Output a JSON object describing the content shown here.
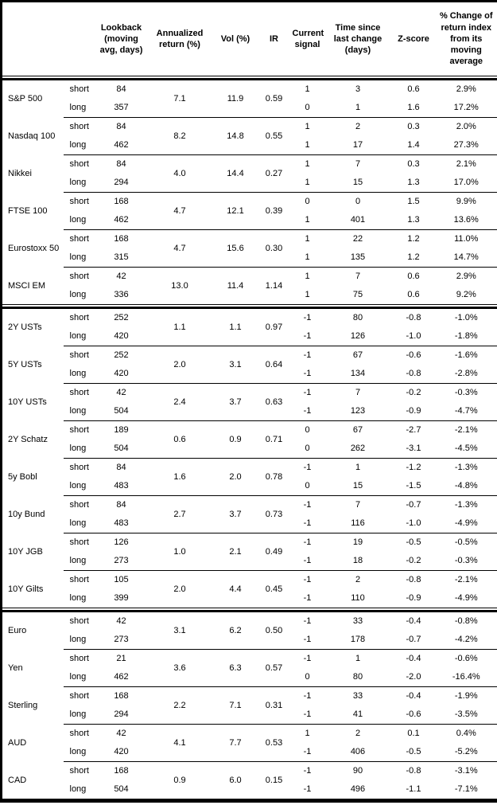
{
  "table": {
    "header": {
      "asset": "",
      "horizon": "",
      "lookback": "Lookback\n(moving\navg, days)",
      "ann_return": "Annualized\nreturn (%)",
      "vol": "Vol (%)",
      "ir": "IR",
      "signal": "Current\nsignal",
      "time_since": "Time since\nlast change\n(days)",
      "zscore": "Z-score",
      "pct_change": "% Change of\nreturn index\nfrom its\nmoving\naverage"
    },
    "groups": [
      {
        "asset": "S&P 500",
        "ann_return": "7.1",
        "vol": "11.9",
        "ir": "0.59",
        "section_end": false,
        "rows": [
          {
            "horizon": "short",
            "lookback": "84",
            "signal": "1",
            "time_since": "3",
            "zscore": "0.6",
            "pct_change": "2.9%"
          },
          {
            "horizon": "long",
            "lookback": "357",
            "signal": "0",
            "time_since": "1",
            "zscore": "1.6",
            "pct_change": "17.2%"
          }
        ]
      },
      {
        "asset": "Nasdaq 100",
        "ann_return": "8.2",
        "vol": "14.8",
        "ir": "0.55",
        "section_end": false,
        "rows": [
          {
            "horizon": "short",
            "lookback": "84",
            "signal": "1",
            "time_since": "2",
            "zscore": "0.3",
            "pct_change": "2.0%"
          },
          {
            "horizon": "long",
            "lookback": "462",
            "signal": "1",
            "time_since": "17",
            "zscore": "1.4",
            "pct_change": "27.3%"
          }
        ]
      },
      {
        "asset": "Nikkei",
        "ann_return": "4.0",
        "vol": "14.4",
        "ir": "0.27",
        "section_end": false,
        "rows": [
          {
            "horizon": "short",
            "lookback": "84",
            "signal": "1",
            "time_since": "7",
            "zscore": "0.3",
            "pct_change": "2.1%"
          },
          {
            "horizon": "long",
            "lookback": "294",
            "signal": "1",
            "time_since": "15",
            "zscore": "1.3",
            "pct_change": "17.0%"
          }
        ]
      },
      {
        "asset": "FTSE 100",
        "ann_return": "4.7",
        "vol": "12.1",
        "ir": "0.39",
        "section_end": false,
        "rows": [
          {
            "horizon": "short",
            "lookback": "168",
            "signal": "0",
            "time_since": "0",
            "zscore": "1.5",
            "pct_change": "9.9%"
          },
          {
            "horizon": "long",
            "lookback": "462",
            "signal": "1",
            "time_since": "401",
            "zscore": "1.3",
            "pct_change": "13.6%"
          }
        ]
      },
      {
        "asset": "Eurostoxx 50",
        "ann_return": "4.7",
        "vol": "15.6",
        "ir": "0.30",
        "section_end": false,
        "rows": [
          {
            "horizon": "short",
            "lookback": "168",
            "signal": "1",
            "time_since": "22",
            "zscore": "1.2",
            "pct_change": "11.0%"
          },
          {
            "horizon": "long",
            "lookback": "315",
            "signal": "1",
            "time_since": "135",
            "zscore": "1.2",
            "pct_change": "14.7%"
          }
        ]
      },
      {
        "asset": "MSCI EM",
        "ann_return": "13.0",
        "vol": "11.4",
        "ir": "1.14",
        "section_end": true,
        "rows": [
          {
            "horizon": "short",
            "lookback": "42",
            "signal": "1",
            "time_since": "7",
            "zscore": "0.6",
            "pct_change": "2.9%"
          },
          {
            "horizon": "long",
            "lookback": "336",
            "signal": "1",
            "time_since": "75",
            "zscore": "0.6",
            "pct_change": "9.2%"
          }
        ]
      },
      {
        "asset": "2Y USTs",
        "ann_return": "1.1",
        "vol": "1.1",
        "ir": "0.97",
        "section_end": false,
        "rows": [
          {
            "horizon": "short",
            "lookback": "252",
            "signal": "-1",
            "time_since": "80",
            "zscore": "-0.8",
            "pct_change": "-1.0%"
          },
          {
            "horizon": "long",
            "lookback": "420",
            "signal": "-1",
            "time_since": "126",
            "zscore": "-1.0",
            "pct_change": "-1.8%"
          }
        ]
      },
      {
        "asset": "5Y USTs",
        "ann_return": "2.0",
        "vol": "3.1",
        "ir": "0.64",
        "section_end": false,
        "rows": [
          {
            "horizon": "short",
            "lookback": "252",
            "signal": "-1",
            "time_since": "67",
            "zscore": "-0.6",
            "pct_change": "-1.6%"
          },
          {
            "horizon": "long",
            "lookback": "420",
            "signal": "-1",
            "time_since": "134",
            "zscore": "-0.8",
            "pct_change": "-2.8%"
          }
        ]
      },
      {
        "asset": "10Y USTs",
        "ann_return": "2.4",
        "vol": "3.7",
        "ir": "0.63",
        "section_end": false,
        "rows": [
          {
            "horizon": "short",
            "lookback": "42",
            "signal": "-1",
            "time_since": "7",
            "zscore": "-0.2",
            "pct_change": "-0.3%"
          },
          {
            "horizon": "long",
            "lookback": "504",
            "signal": "-1",
            "time_since": "123",
            "zscore": "-0.9",
            "pct_change": "-4.7%"
          }
        ]
      },
      {
        "asset": "2Y Schatz",
        "ann_return": "0.6",
        "vol": "0.9",
        "ir": "0.71",
        "section_end": false,
        "rows": [
          {
            "horizon": "short",
            "lookback": "189",
            "signal": "0",
            "time_since": "67",
            "zscore": "-2.7",
            "pct_change": "-2.1%"
          },
          {
            "horizon": "long",
            "lookback": "504",
            "signal": "0",
            "time_since": "262",
            "zscore": "-3.1",
            "pct_change": "-4.5%"
          }
        ]
      },
      {
        "asset": "5y Bobl",
        "ann_return": "1.6",
        "vol": "2.0",
        "ir": "0.78",
        "section_end": false,
        "rows": [
          {
            "horizon": "short",
            "lookback": "84",
            "signal": "-1",
            "time_since": "1",
            "zscore": "-1.2",
            "pct_change": "-1.3%"
          },
          {
            "horizon": "long",
            "lookback": "483",
            "signal": "0",
            "time_since": "15",
            "zscore": "-1.5",
            "pct_change": "-4.8%"
          }
        ]
      },
      {
        "asset": "10y Bund",
        "ann_return": "2.7",
        "vol": "3.7",
        "ir": "0.73",
        "section_end": false,
        "rows": [
          {
            "horizon": "short",
            "lookback": "84",
            "signal": "-1",
            "time_since": "7",
            "zscore": "-0.7",
            "pct_change": "-1.3%"
          },
          {
            "horizon": "long",
            "lookback": "483",
            "signal": "-1",
            "time_since": "116",
            "zscore": "-1.0",
            "pct_change": "-4.9%"
          }
        ]
      },
      {
        "asset": "10Y JGB",
        "ann_return": "1.0",
        "vol": "2.1",
        "ir": "0.49",
        "section_end": false,
        "rows": [
          {
            "horizon": "short",
            "lookback": "126",
            "signal": "-1",
            "time_since": "19",
            "zscore": "-0.5",
            "pct_change": "-0.5%"
          },
          {
            "horizon": "long",
            "lookback": "273",
            "signal": "-1",
            "time_since": "18",
            "zscore": "-0.2",
            "pct_change": "-0.3%"
          }
        ]
      },
      {
        "asset": "10Y Gilts",
        "ann_return": "2.0",
        "vol": "4.4",
        "ir": "0.45",
        "section_end": true,
        "rows": [
          {
            "horizon": "short",
            "lookback": "105",
            "signal": "-1",
            "time_since": "2",
            "zscore": "-0.8",
            "pct_change": "-2.1%"
          },
          {
            "horizon": "long",
            "lookback": "399",
            "signal": "-1",
            "time_since": "110",
            "zscore": "-0.9",
            "pct_change": "-4.9%"
          }
        ]
      },
      {
        "asset": "Euro",
        "ann_return": "3.1",
        "vol": "6.2",
        "ir": "0.50",
        "section_end": false,
        "rows": [
          {
            "horizon": "short",
            "lookback": "42",
            "signal": "-1",
            "time_since": "33",
            "zscore": "-0.4",
            "pct_change": "-0.8%"
          },
          {
            "horizon": "long",
            "lookback": "273",
            "signal": "-1",
            "time_since": "178",
            "zscore": "-0.7",
            "pct_change": "-4.2%"
          }
        ]
      },
      {
        "asset": "Yen",
        "ann_return": "3.6",
        "vol": "6.3",
        "ir": "0.57",
        "section_end": false,
        "rows": [
          {
            "horizon": "short",
            "lookback": "21",
            "signal": "-1",
            "time_since": "1",
            "zscore": "-0.4",
            "pct_change": "-0.6%"
          },
          {
            "horizon": "long",
            "lookback": "462",
            "signal": "0",
            "time_since": "80",
            "zscore": "-2.0",
            "pct_change": "-16.4%"
          }
        ]
      },
      {
        "asset": "Sterling",
        "ann_return": "2.2",
        "vol": "7.1",
        "ir": "0.31",
        "section_end": false,
        "rows": [
          {
            "horizon": "short",
            "lookback": "168",
            "signal": "-1",
            "time_since": "33",
            "zscore": "-0.4",
            "pct_change": "-1.9%"
          },
          {
            "horizon": "long",
            "lookback": "294",
            "signal": "-1",
            "time_since": "41",
            "zscore": "-0.6",
            "pct_change": "-3.5%"
          }
        ]
      },
      {
        "asset": "AUD",
        "ann_return": "4.1",
        "vol": "7.7",
        "ir": "0.53",
        "section_end": false,
        "rows": [
          {
            "horizon": "short",
            "lookback": "42",
            "signal": "1",
            "time_since": "2",
            "zscore": "0.1",
            "pct_change": "0.4%"
          },
          {
            "horizon": "long",
            "lookback": "420",
            "signal": "-1",
            "time_since": "406",
            "zscore": "-0.5",
            "pct_change": "-5.2%"
          }
        ]
      },
      {
        "asset": "CAD",
        "ann_return": "0.9",
        "vol": "6.0",
        "ir": "0.15",
        "section_end": false,
        "rows": [
          {
            "horizon": "short",
            "lookback": "168",
            "signal": "-1",
            "time_since": "90",
            "zscore": "-0.8",
            "pct_change": "-3.1%"
          },
          {
            "horizon": "long",
            "lookback": "504",
            "signal": "-1",
            "time_since": "496",
            "zscore": "-1.1",
            "pct_change": "-7.1%"
          }
        ]
      }
    ]
  },
  "colors": {
    "text": "#000000",
    "border": "#000000",
    "background": "#ffffff"
  }
}
